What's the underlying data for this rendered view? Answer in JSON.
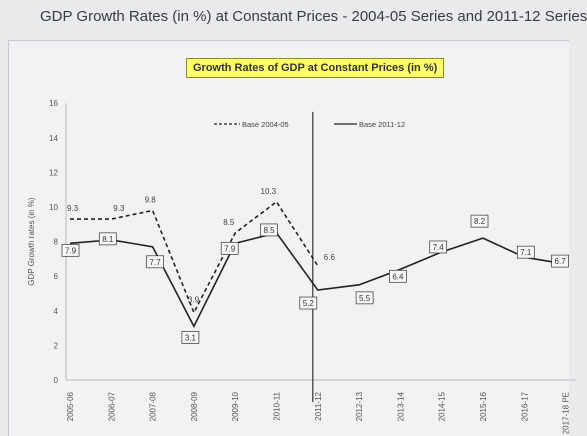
{
  "page_title": "GDP Growth Rates (in %) at Constant Prices - 2004-05 Series and 2011-12 Series",
  "chart_data": {
    "type": "line",
    "title": "Growth Rates of GDP at Constant Prices (in %)",
    "xlabel": "",
    "ylabel": "GDP Growth rates (in %)",
    "ylim": [
      0,
      16
    ],
    "yticks": [
      0,
      2,
      4,
      6,
      8,
      10,
      12,
      14,
      16
    ],
    "categories": [
      "2005-06",
      "2006-07",
      "2007-08",
      "2008-09",
      "2009-10",
      "2010-11",
      "2011-12",
      "2012-13",
      "2013-14",
      "2014-15",
      "2015-16",
      "2016-17",
      "2017-18 PE"
    ],
    "series": [
      {
        "name": "Base 2004-05",
        "style": "dashed",
        "values": [
          9.3,
          9.3,
          9.8,
          3.9,
          8.5,
          10.3,
          6.6,
          null,
          null,
          null,
          null,
          null,
          null
        ],
        "labels": [
          "9.3",
          "9.3",
          "9.8",
          "3.9",
          "8.5",
          "10.3",
          "6.6",
          "",
          "",
          "",
          "",
          "",
          ""
        ]
      },
      {
        "name": "Base 2011-12",
        "style": "solid",
        "values": [
          7.9,
          8.1,
          7.7,
          3.1,
          7.9,
          8.5,
          5.2,
          5.5,
          6.4,
          7.4,
          8.2,
          7.1,
          6.7
        ],
        "labels": [
          "7.9",
          "8.1",
          "7.7",
          "3.1",
          "7.9",
          "8.5",
          "5.2",
          "5.5",
          "6.4",
          "7.4",
          "8.2",
          "7.1",
          "6.7"
        ]
      }
    ],
    "divider_category": "2011-12",
    "legend_position": "top-center"
  }
}
